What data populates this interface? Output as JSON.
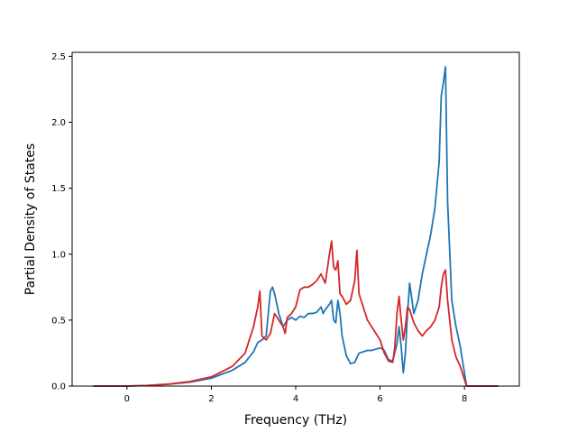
{
  "chart_data": {
    "type": "line",
    "title": "",
    "xlabel": "Frequency (THz)",
    "ylabel": "Partial Density of States",
    "xlim": [
      -1.3,
      9.3
    ],
    "ylim": [
      0,
      2.53
    ],
    "xticks": [
      0,
      2,
      4,
      6,
      8
    ],
    "yticks": [
      0.0,
      0.5,
      1.0,
      1.5,
      2.0,
      2.5
    ],
    "xtick_labels": [
      "0",
      "2",
      "4",
      "6",
      "8"
    ],
    "ytick_labels": [
      "0.0",
      "0.5",
      "1.0",
      "1.5",
      "2.0",
      "2.5"
    ],
    "grid": false,
    "legend": "none",
    "series": [
      {
        "color": "#1f77b4",
        "points": [
          [
            -0.8,
            0
          ],
          [
            0,
            0
          ],
          [
            0.5,
            0.005
          ],
          [
            1.0,
            0.015
          ],
          [
            1.5,
            0.03
          ],
          [
            2.0,
            0.06
          ],
          [
            2.5,
            0.12
          ],
          [
            2.8,
            0.18
          ],
          [
            3.0,
            0.26
          ],
          [
            3.1,
            0.33
          ],
          [
            3.2,
            0.35
          ],
          [
            3.3,
            0.38
          ],
          [
            3.4,
            0.72
          ],
          [
            3.45,
            0.75
          ],
          [
            3.5,
            0.7
          ],
          [
            3.6,
            0.55
          ],
          [
            3.7,
            0.45
          ],
          [
            3.8,
            0.5
          ],
          [
            3.9,
            0.52
          ],
          [
            4.0,
            0.5
          ],
          [
            4.1,
            0.53
          ],
          [
            4.2,
            0.52
          ],
          [
            4.3,
            0.55
          ],
          [
            4.4,
            0.55
          ],
          [
            4.5,
            0.56
          ],
          [
            4.6,
            0.6
          ],
          [
            4.65,
            0.55
          ],
          [
            4.7,
            0.58
          ],
          [
            4.8,
            0.62
          ],
          [
            4.85,
            0.65
          ],
          [
            4.9,
            0.5
          ],
          [
            4.95,
            0.48
          ],
          [
            5.0,
            0.65
          ],
          [
            5.05,
            0.55
          ],
          [
            5.1,
            0.38
          ],
          [
            5.2,
            0.23
          ],
          [
            5.3,
            0.17
          ],
          [
            5.4,
            0.18
          ],
          [
            5.5,
            0.25
          ],
          [
            5.6,
            0.26
          ],
          [
            5.7,
            0.27
          ],
          [
            5.8,
            0.27
          ],
          [
            5.9,
            0.28
          ],
          [
            6.0,
            0.29
          ],
          [
            6.1,
            0.27
          ],
          [
            6.2,
            0.2
          ],
          [
            6.3,
            0.19
          ],
          [
            6.4,
            0.32
          ],
          [
            6.45,
            0.45
          ],
          [
            6.5,
            0.3
          ],
          [
            6.55,
            0.1
          ],
          [
            6.6,
            0.25
          ],
          [
            6.65,
            0.55
          ],
          [
            6.7,
            0.78
          ],
          [
            6.8,
            0.55
          ],
          [
            6.9,
            0.65
          ],
          [
            7.0,
            0.85
          ],
          [
            7.1,
            1.0
          ],
          [
            7.2,
            1.15
          ],
          [
            7.3,
            1.35
          ],
          [
            7.4,
            1.7
          ],
          [
            7.45,
            2.2
          ],
          [
            7.5,
            2.3
          ],
          [
            7.55,
            2.42
          ],
          [
            7.6,
            1.4
          ],
          [
            7.7,
            0.65
          ],
          [
            7.8,
            0.45
          ],
          [
            7.9,
            0.3
          ],
          [
            8.0,
            0.1
          ],
          [
            8.05,
            0
          ],
          [
            8.8,
            0
          ]
        ]
      },
      {
        "color": "#d62728",
        "points": [
          [
            -0.8,
            0
          ],
          [
            0,
            0
          ],
          [
            0.5,
            0.005
          ],
          [
            1.0,
            0.015
          ],
          [
            1.5,
            0.035
          ],
          [
            2.0,
            0.07
          ],
          [
            2.5,
            0.15
          ],
          [
            2.8,
            0.25
          ],
          [
            3.0,
            0.45
          ],
          [
            3.1,
            0.6
          ],
          [
            3.15,
            0.72
          ],
          [
            3.2,
            0.38
          ],
          [
            3.3,
            0.35
          ],
          [
            3.4,
            0.4
          ],
          [
            3.5,
            0.55
          ],
          [
            3.6,
            0.5
          ],
          [
            3.7,
            0.45
          ],
          [
            3.75,
            0.4
          ],
          [
            3.8,
            0.52
          ],
          [
            3.9,
            0.55
          ],
          [
            4.0,
            0.6
          ],
          [
            4.1,
            0.73
          ],
          [
            4.2,
            0.75
          ],
          [
            4.3,
            0.75
          ],
          [
            4.4,
            0.77
          ],
          [
            4.5,
            0.8
          ],
          [
            4.6,
            0.85
          ],
          [
            4.7,
            0.78
          ],
          [
            4.8,
            1.0
          ],
          [
            4.85,
            1.1
          ],
          [
            4.9,
            0.9
          ],
          [
            4.95,
            0.88
          ],
          [
            5.0,
            0.95
          ],
          [
            5.05,
            0.7
          ],
          [
            5.1,
            0.68
          ],
          [
            5.2,
            0.62
          ],
          [
            5.3,
            0.65
          ],
          [
            5.4,
            0.8
          ],
          [
            5.45,
            1.03
          ],
          [
            5.5,
            0.7
          ],
          [
            5.6,
            0.6
          ],
          [
            5.7,
            0.5
          ],
          [
            5.8,
            0.45
          ],
          [
            5.9,
            0.4
          ],
          [
            6.0,
            0.35
          ],
          [
            6.1,
            0.25
          ],
          [
            6.2,
            0.19
          ],
          [
            6.3,
            0.18
          ],
          [
            6.35,
            0.3
          ],
          [
            6.4,
            0.55
          ],
          [
            6.45,
            0.68
          ],
          [
            6.5,
            0.5
          ],
          [
            6.55,
            0.35
          ],
          [
            6.6,
            0.45
          ],
          [
            6.65,
            0.6
          ],
          [
            6.7,
            0.58
          ],
          [
            6.8,
            0.48
          ],
          [
            6.9,
            0.42
          ],
          [
            7.0,
            0.38
          ],
          [
            7.1,
            0.42
          ],
          [
            7.2,
            0.45
          ],
          [
            7.3,
            0.5
          ],
          [
            7.4,
            0.6
          ],
          [
            7.45,
            0.75
          ],
          [
            7.5,
            0.85
          ],
          [
            7.55,
            0.88
          ],
          [
            7.6,
            0.65
          ],
          [
            7.7,
            0.35
          ],
          [
            7.8,
            0.22
          ],
          [
            7.9,
            0.15
          ],
          [
            8.0,
            0.05
          ],
          [
            8.05,
            0
          ],
          [
            8.8,
            0
          ]
        ]
      }
    ]
  }
}
